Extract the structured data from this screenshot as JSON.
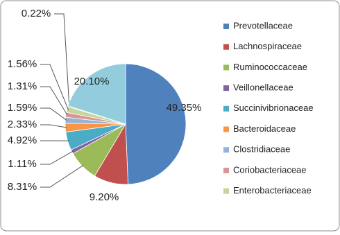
{
  "chart_data": {
    "type": "pie",
    "categories": [
      "Prevotellaceae",
      "Lachnospiraceae",
      "Ruminococcaceae",
      "Veillonellaceae",
      "Succinivibrionaceae",
      "Bacteroidaceae",
      "Clostridiaceae",
      "Coriobacteriaceae",
      "Enterobacteriaceae",
      null,
      null
    ],
    "values": [
      49.35,
      9.2,
      8.31,
      1.11,
      4.92,
      2.33,
      1.59,
      1.31,
      1.56,
      0.22,
      20.1
    ],
    "value_labels": [
      "49.35%",
      "9.20%",
      "8.31%",
      "1.11%",
      "4.92%",
      "2.33%",
      "1.59%",
      "1.31%",
      "1.56%",
      "0.22%",
      "20.10%"
    ],
    "colors": [
      "#4f81bd",
      "#c0504d",
      "#9bbb59",
      "#8064a2",
      "#4bacc6",
      "#f79646",
      "#95b3d7",
      "#d99694",
      "#c3d69b",
      "#b3a2c7",
      "#93cddd"
    ],
    "legend": "right"
  }
}
